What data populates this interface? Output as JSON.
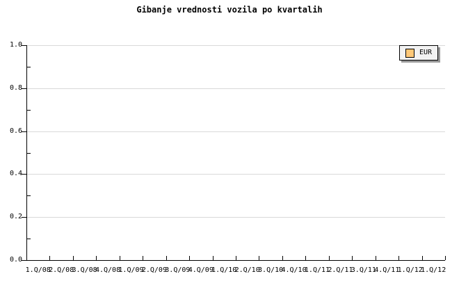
{
  "chart_data": {
    "type": "line",
    "title": "Gibanje vrednosti vozila po kvartalih",
    "xlabel": "",
    "ylabel": "",
    "categories": [
      "1.Q/08",
      "2.Q/08",
      "3.Q/08",
      "4.Q/08",
      "1.Q/09",
      "2.Q/09",
      "3.Q/09",
      "4.Q/09",
      "1.Q/10",
      "2.Q/10",
      "3.Q/10",
      "4.Q/10",
      "1.Q/11",
      "2.Q/11",
      "3.Q/11",
      "4.Q/11",
      "1.Q/12",
      "1.Q/12"
    ],
    "series": [
      {
        "name": "EUR",
        "color": "#ffc878",
        "values": []
      }
    ],
    "ylim": [
      0,
      1
    ],
    "yticks": [
      {
        "value": 0.0,
        "label": "0.0"
      },
      {
        "value": 0.2,
        "label": "0.2"
      },
      {
        "value": 0.4,
        "label": "0.4"
      },
      {
        "value": 0.6,
        "label": "0.6"
      },
      {
        "value": 0.8,
        "label": "0.8"
      },
      {
        "value": 1.0,
        "label": "1.0"
      }
    ],
    "yminor": [
      0.1,
      0.3,
      0.5,
      0.7,
      0.9
    ],
    "grid": true,
    "legend_position": "top-right"
  },
  "colors": {
    "background": "#ffffff",
    "axis": "#000000",
    "gridline": "#d9d9d9",
    "legend_background": "#f2f2f2",
    "legend_shadow": "#999999",
    "series_eur": "#ffc878"
  }
}
